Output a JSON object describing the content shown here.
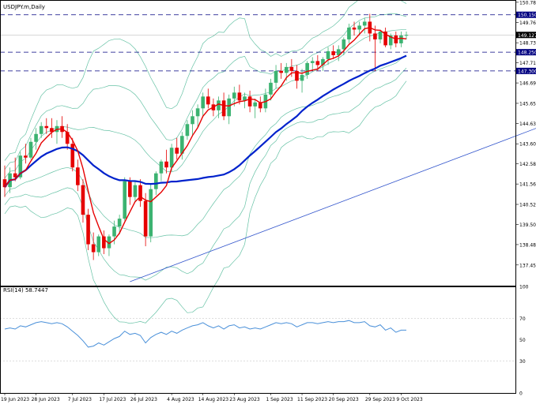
{
  "window": {
    "symbol_label": "USDJPY.m,Daily"
  },
  "chart_data": [
    {
      "type": "candlestick",
      "title": "USDJPY.m,Daily",
      "timeframe": "Daily",
      "ylim": [
        136.4,
        150.9
      ],
      "yticks": [
        150.785,
        149.765,
        148.73,
        147.71,
        146.69,
        145.655,
        144.635,
        143.6,
        142.58,
        141.56,
        140.525,
        139.505,
        138.485,
        137.45
      ],
      "xticks": [
        "19 Jun 2023",
        "28 Jun 2023",
        "7 Jul 2023",
        "17 Jul 2023",
        "26 Jul 2023",
        "4 Aug 2023",
        "14 Aug 2023",
        "23 Aug 2023",
        "1 Sep 2023",
        "11 Sep 2023",
        "20 Sep 2023",
        "29 Sep 2023",
        "9 Oct 2023"
      ],
      "price_markers": [
        {
          "label": "150.150",
          "value": 150.15,
          "style": "dashed-line",
          "color": "#000080"
        },
        {
          "label": "148.250",
          "value": 148.25,
          "style": "dashed-line",
          "color": "#000080"
        },
        {
          "label": "147.300",
          "value": 147.3,
          "style": "dashed-line",
          "color": "#000080"
        },
        {
          "label": "149.127",
          "value": 149.127,
          "style": "current-price",
          "color": "#000000"
        }
      ],
      "candles": [
        {
          "o": 141.8,
          "h": 142.5,
          "l": 140.9,
          "c": 141.4
        },
        {
          "o": 141.4,
          "h": 142.4,
          "l": 141.1,
          "c": 142.1
        },
        {
          "o": 142.1,
          "h": 142.9,
          "l": 141.7,
          "c": 141.9
        },
        {
          "o": 141.9,
          "h": 143.2,
          "l": 141.8,
          "c": 143.0
        },
        {
          "o": 143.0,
          "h": 143.6,
          "l": 142.6,
          "c": 142.9
        },
        {
          "o": 142.9,
          "h": 143.9,
          "l": 142.8,
          "c": 143.7
        },
        {
          "o": 143.7,
          "h": 144.4,
          "l": 143.3,
          "c": 144.1
        },
        {
          "o": 144.1,
          "h": 144.7,
          "l": 143.9,
          "c": 144.5
        },
        {
          "o": 144.5,
          "h": 144.9,
          "l": 144.1,
          "c": 144.4
        },
        {
          "o": 144.4,
          "h": 144.9,
          "l": 143.9,
          "c": 144.2
        },
        {
          "o": 144.2,
          "h": 144.8,
          "l": 143.6,
          "c": 144.5
        },
        {
          "o": 144.5,
          "h": 145.0,
          "l": 143.9,
          "c": 144.2
        },
        {
          "o": 144.2,
          "h": 144.6,
          "l": 143.3,
          "c": 143.6
        },
        {
          "o": 143.6,
          "h": 143.9,
          "l": 142.2,
          "c": 142.4
        },
        {
          "o": 142.4,
          "h": 142.8,
          "l": 141.2,
          "c": 141.5
        },
        {
          "o": 141.5,
          "h": 141.8,
          "l": 139.6,
          "c": 140.0
        },
        {
          "o": 140.0,
          "h": 140.3,
          "l": 138.2,
          "c": 138.5
        },
        {
          "o": 138.5,
          "h": 139.1,
          "l": 137.7,
          "c": 138.1
        },
        {
          "o": 138.1,
          "h": 139.0,
          "l": 137.9,
          "c": 138.9
        },
        {
          "o": 138.9,
          "h": 139.2,
          "l": 138.0,
          "c": 138.3
        },
        {
          "o": 138.3,
          "h": 139.0,
          "l": 137.9,
          "c": 138.9
        },
        {
          "o": 138.9,
          "h": 139.7,
          "l": 138.5,
          "c": 139.4
        },
        {
          "o": 139.4,
          "h": 140.0,
          "l": 139.0,
          "c": 139.8
        },
        {
          "o": 139.8,
          "h": 141.9,
          "l": 139.7,
          "c": 141.7
        },
        {
          "o": 141.7,
          "h": 141.9,
          "l": 140.5,
          "c": 140.9
        },
        {
          "o": 140.9,
          "h": 141.7,
          "l": 140.7,
          "c": 141.5
        },
        {
          "o": 141.5,
          "h": 141.8,
          "l": 140.4,
          "c": 140.7
        },
        {
          "o": 140.7,
          "h": 141.1,
          "l": 138.4,
          "c": 138.9
        },
        {
          "o": 138.9,
          "h": 141.6,
          "l": 138.6,
          "c": 141.3
        },
        {
          "o": 141.3,
          "h": 142.2,
          "l": 141.0,
          "c": 142.1
        },
        {
          "o": 142.1,
          "h": 142.8,
          "l": 141.7,
          "c": 142.7
        },
        {
          "o": 142.7,
          "h": 143.3,
          "l": 142.1,
          "c": 142.4
        },
        {
          "o": 142.4,
          "h": 143.6,
          "l": 142.2,
          "c": 143.4
        },
        {
          "o": 143.4,
          "h": 143.9,
          "l": 142.8,
          "c": 143.1
        },
        {
          "o": 143.1,
          "h": 144.2,
          "l": 142.8,
          "c": 144.0
        },
        {
          "o": 144.0,
          "h": 144.8,
          "l": 143.8,
          "c": 144.6
        },
        {
          "o": 144.6,
          "h": 145.3,
          "l": 144.0,
          "c": 145.0
        },
        {
          "o": 145.0,
          "h": 145.6,
          "l": 144.4,
          "c": 145.4
        },
        {
          "o": 145.4,
          "h": 146.2,
          "l": 145.0,
          "c": 146.0
        },
        {
          "o": 146.0,
          "h": 146.4,
          "l": 145.4,
          "c": 145.6
        },
        {
          "o": 145.6,
          "h": 145.9,
          "l": 145.0,
          "c": 145.3
        },
        {
          "o": 145.3,
          "h": 146.0,
          "l": 144.9,
          "c": 145.8
        },
        {
          "o": 145.8,
          "h": 146.2,
          "l": 144.8,
          "c": 145.0
        },
        {
          "o": 145.0,
          "h": 146.1,
          "l": 144.6,
          "c": 145.9
        },
        {
          "o": 145.9,
          "h": 146.5,
          "l": 145.5,
          "c": 146.2
        },
        {
          "o": 146.2,
          "h": 146.6,
          "l": 145.6,
          "c": 145.8
        },
        {
          "o": 145.8,
          "h": 146.2,
          "l": 145.4,
          "c": 146.0
        },
        {
          "o": 146.0,
          "h": 146.3,
          "l": 145.2,
          "c": 145.5
        },
        {
          "o": 145.5,
          "h": 145.9,
          "l": 144.9,
          "c": 145.7
        },
        {
          "o": 145.7,
          "h": 146.0,
          "l": 145.2,
          "c": 145.4
        },
        {
          "o": 145.4,
          "h": 146.4,
          "l": 145.2,
          "c": 146.1
        },
        {
          "o": 146.1,
          "h": 146.9,
          "l": 145.8,
          "c": 146.7
        },
        {
          "o": 146.7,
          "h": 147.6,
          "l": 146.4,
          "c": 147.3
        },
        {
          "o": 147.3,
          "h": 147.7,
          "l": 146.9,
          "c": 147.2
        },
        {
          "o": 147.2,
          "h": 147.7,
          "l": 146.8,
          "c": 147.5
        },
        {
          "o": 147.5,
          "h": 147.9,
          "l": 147.0,
          "c": 147.3
        },
        {
          "o": 147.3,
          "h": 147.6,
          "l": 146.4,
          "c": 146.8
        },
        {
          "o": 146.8,
          "h": 147.4,
          "l": 146.2,
          "c": 147.1
        },
        {
          "o": 147.1,
          "h": 147.8,
          "l": 146.9,
          "c": 147.7
        },
        {
          "o": 147.7,
          "h": 148.0,
          "l": 147.3,
          "c": 147.8
        },
        {
          "o": 147.8,
          "h": 148.1,
          "l": 147.3,
          "c": 147.6
        },
        {
          "o": 147.6,
          "h": 148.0,
          "l": 147.3,
          "c": 147.9
        },
        {
          "o": 147.9,
          "h": 148.5,
          "l": 147.6,
          "c": 148.3
        },
        {
          "o": 148.3,
          "h": 148.6,
          "l": 147.9,
          "c": 148.1
        },
        {
          "o": 148.1,
          "h": 148.6,
          "l": 147.8,
          "c": 148.4
        },
        {
          "o": 148.4,
          "h": 149.0,
          "l": 148.1,
          "c": 148.9
        },
        {
          "o": 148.9,
          "h": 149.7,
          "l": 148.7,
          "c": 149.5
        },
        {
          "o": 149.5,
          "h": 149.8,
          "l": 149.1,
          "c": 149.4
        },
        {
          "o": 149.4,
          "h": 149.8,
          "l": 149.1,
          "c": 149.6
        },
        {
          "o": 149.6,
          "h": 150.0,
          "l": 149.2,
          "c": 149.8
        },
        {
          "o": 149.8,
          "h": 150.2,
          "l": 148.8,
          "c": 149.2
        },
        {
          "o": 149.2,
          "h": 149.6,
          "l": 147.3,
          "c": 148.9
        },
        {
          "o": 148.9,
          "h": 149.4,
          "l": 148.7,
          "c": 149.3
        },
        {
          "o": 149.3,
          "h": 149.5,
          "l": 148.5,
          "c": 148.6
        },
        {
          "o": 148.6,
          "h": 149.2,
          "l": 148.4,
          "c": 149.1
        },
        {
          "o": 149.1,
          "h": 149.3,
          "l": 148.5,
          "c": 148.7
        },
        {
          "o": 148.7,
          "h": 149.3,
          "l": 148.5,
          "c": 149.1
        },
        {
          "o": 149.1,
          "h": 149.3,
          "l": 148.9,
          "c": 149.13
        }
      ],
      "ma_fast_color": "#e60000",
      "ma_slow_color": "#0022cc",
      "bb_color": "#66c2a5",
      "bull_color": "#3cb371",
      "bear_color": "#e60000",
      "trendline": {
        "color": "#3355cc",
        "from": {
          "i": 24,
          "v": 136.6
        },
        "to": {
          "i": 110,
          "v": 145.2
        }
      }
    },
    {
      "type": "line",
      "title": "RSI(14) 58.7447",
      "ylim": [
        0,
        100
      ],
      "yticks": [
        100,
        70,
        50,
        30,
        0
      ],
      "levels": [
        70,
        30
      ],
      "color": "#4a90d9",
      "values": [
        60,
        61,
        60,
        63,
        62,
        64,
        66,
        67,
        66,
        65,
        66,
        65,
        62,
        58,
        54,
        49,
        43,
        44,
        47,
        45,
        48,
        51,
        53,
        58,
        55,
        56,
        54,
        47,
        52,
        55,
        57,
        55,
        58,
        56,
        59,
        61,
        63,
        64,
        66,
        63,
        61,
        63,
        60,
        63,
        64,
        61,
        62,
        60,
        61,
        60,
        62,
        64,
        66,
        65,
        66,
        65,
        62,
        64,
        66,
        66,
        65,
        66,
        67,
        66,
        67,
        67,
        68,
        66,
        66,
        67,
        63,
        62,
        64,
        59,
        61,
        57,
        59,
        59
      ]
    }
  ]
}
